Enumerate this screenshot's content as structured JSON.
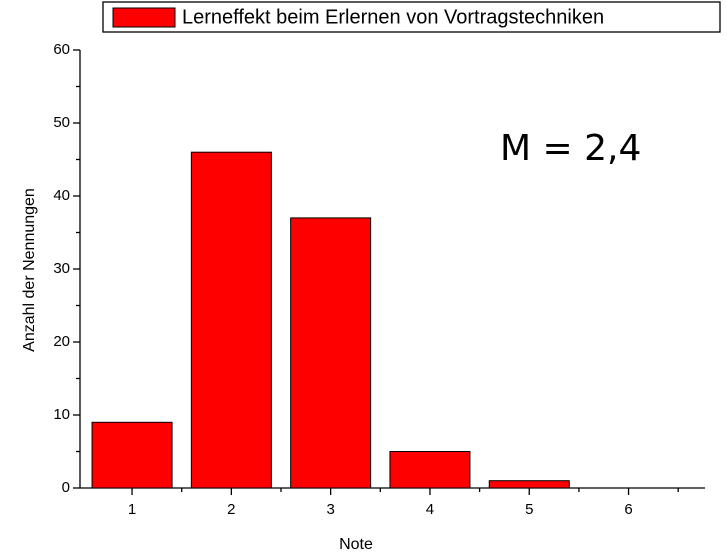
{
  "chart_data": {
    "type": "bar",
    "legend": "Lerneffekt beim Erlernen von Vortragstechniken",
    "annotation": "M = 2,4",
    "x_label": "Note",
    "y_label": "Anzahl der Nennungen",
    "categories": [
      "1",
      "2",
      "3",
      "4",
      "5",
      "6"
    ],
    "values": [
      9,
      46,
      37,
      5,
      1,
      0
    ],
    "color": "#ff0000",
    "ylim": [
      0,
      60
    ],
    "yticks": [
      0,
      10,
      20,
      30,
      40,
      50,
      60
    ],
    "grid": false,
    "legend_position": "top"
  }
}
